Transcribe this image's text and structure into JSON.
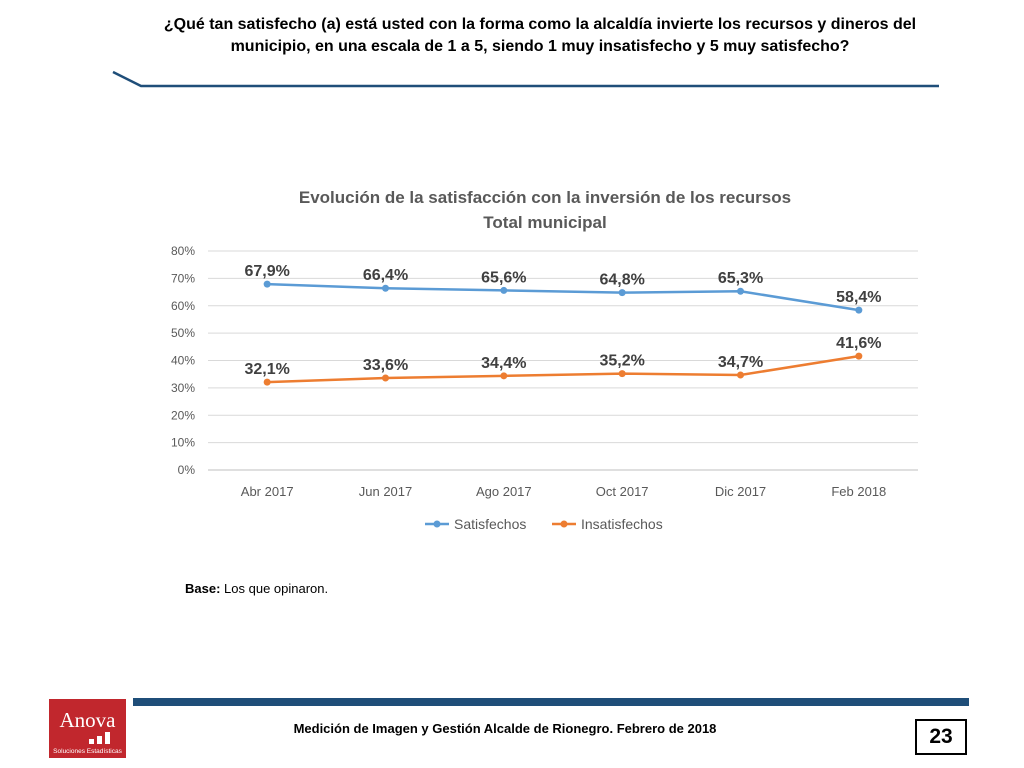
{
  "slide": {
    "question": "¿Qué tan satisfecho (a) está usted con la forma como la alcaldía invierte los recursos y dineros del municipio, en una escala de 1 a 5, siendo 1 muy insatisfecho y 5 muy satisfecho?",
    "base_label": "Base:",
    "base_text": "Los que opinaron.",
    "footer_text": "Medición de Imagen y Gestión Alcalde de Rionegro. Febrero de 2018",
    "page_number": "23",
    "logo_name": "Anova",
    "logo_tagline": "Soluciones Estadísticas",
    "colors": {
      "header_rule": "#1f4e79",
      "footer_bar": "#1f4e79",
      "logo_bg": "#c1272d"
    }
  },
  "chart_data": {
    "type": "line",
    "title_line1": "Evolución de la satisfacción con la inversión de los recursos",
    "title_line2": "Total municipal",
    "categories": [
      "Abr 2017",
      "Jun 2017",
      "Ago 2017",
      "Oct 2017",
      "Dic 2017",
      "Feb 2018"
    ],
    "ylim": [
      0,
      80
    ],
    "ytick_step": 10,
    "yticks": [
      "0%",
      "10%",
      "20%",
      "30%",
      "40%",
      "50%",
      "60%",
      "70%",
      "80%"
    ],
    "grid": true,
    "legend_position": "bottom",
    "series": [
      {
        "name": "Satisfechos",
        "color": "#5b9bd5",
        "values": [
          67.9,
          66.4,
          65.6,
          64.8,
          65.3,
          58.4
        ],
        "labels": [
          "67,9%",
          "66,4%",
          "65,6%",
          "64,8%",
          "65,3%",
          "58,4%"
        ]
      },
      {
        "name": "Insatisfechos",
        "color": "#ed7d31",
        "values": [
          32.1,
          33.6,
          34.4,
          35.2,
          34.7,
          41.6
        ],
        "labels": [
          "32,1%",
          "33,6%",
          "34,4%",
          "35,2%",
          "34,7%",
          "41,6%"
        ]
      }
    ]
  }
}
